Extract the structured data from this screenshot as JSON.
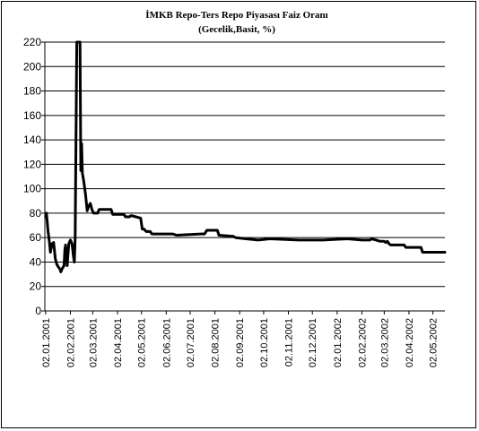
{
  "chart_data": {
    "type": "line",
    "title": "İMKB Repo-Ters Repo Piyasası Faiz Oranı",
    "subtitle": "(Gecelik,Basit, %)",
    "xlabel": "",
    "ylabel": "",
    "ylim": [
      0,
      220
    ],
    "yticks": [
      0,
      20,
      40,
      60,
      80,
      100,
      120,
      140,
      160,
      180,
      200,
      220
    ],
    "xticks": [
      "02.01.2001",
      "02.02.2001",
      "02.03.2001",
      "02.04.2001",
      "02.05.2001",
      "02.06.2001",
      "02.07.2001",
      "02.08.2001",
      "02.09.2001",
      "02.10.2001",
      "02.11.2001",
      "02.12.2001",
      "02.01.2002",
      "02.02.2002",
      "02.03.2002",
      "02.04.2002",
      "02.05.2002"
    ],
    "xlim": [
      "2001-01-01",
      "2002-05-17"
    ],
    "grid": true,
    "legend": "none",
    "line_color": "#000000",
    "series": [
      {
        "name": "",
        "points": [
          [
            "2001-01-02",
            77
          ],
          [
            "2001-01-03",
            80
          ],
          [
            "2001-01-05",
            65
          ],
          [
            "2001-01-07",
            55
          ],
          [
            "2001-01-08",
            48
          ],
          [
            "2001-01-10",
            55
          ],
          [
            "2001-01-12",
            56
          ],
          [
            "2001-01-14",
            43
          ],
          [
            "2001-01-16",
            38
          ],
          [
            "2001-01-18",
            36
          ],
          [
            "2001-01-20",
            34
          ],
          [
            "2001-01-21",
            32
          ],
          [
            "2001-01-23",
            35
          ],
          [
            "2001-01-25",
            37
          ],
          [
            "2001-01-26",
            50
          ],
          [
            "2001-01-27",
            54
          ],
          [
            "2001-01-29",
            37
          ],
          [
            "2001-01-31",
            55
          ],
          [
            "2001-02-02",
            58
          ],
          [
            "2001-02-04",
            55
          ],
          [
            "2001-02-06",
            44
          ],
          [
            "2001-02-07",
            40
          ],
          [
            "2001-02-08",
            60
          ],
          [
            "2001-02-10",
            220
          ],
          [
            "2001-02-14",
            220
          ],
          [
            "2001-02-15",
            115
          ],
          [
            "2001-02-16",
            137
          ],
          [
            "2001-02-17",
            113
          ],
          [
            "2001-02-19",
            105
          ],
          [
            "2001-02-21",
            95
          ],
          [
            "2001-02-23",
            82
          ],
          [
            "2001-02-25",
            86
          ],
          [
            "2001-02-27",
            88
          ],
          [
            "2001-03-01",
            83
          ],
          [
            "2001-03-03",
            80
          ],
          [
            "2001-03-08",
            80
          ],
          [
            "2001-03-10",
            83
          ],
          [
            "2001-03-25",
            83
          ],
          [
            "2001-03-27",
            79
          ],
          [
            "2001-04-10",
            79
          ],
          [
            "2001-04-12",
            77
          ],
          [
            "2001-04-17",
            77
          ],
          [
            "2001-04-19",
            78
          ],
          [
            "2001-04-25",
            77
          ],
          [
            "2001-05-01",
            76
          ],
          [
            "2001-05-03",
            67
          ],
          [
            "2001-05-05",
            67
          ],
          [
            "2001-05-08",
            65
          ],
          [
            "2001-05-13",
            65
          ],
          [
            "2001-05-15",
            63
          ],
          [
            "2001-06-10",
            63
          ],
          [
            "2001-06-15",
            62
          ],
          [
            "2001-07-15",
            63
          ],
          [
            "2001-07-20",
            63
          ],
          [
            "2001-07-23",
            66
          ],
          [
            "2001-08-05",
            66
          ],
          [
            "2001-08-07",
            62
          ],
          [
            "2001-08-25",
            61
          ],
          [
            "2001-08-28",
            60
          ],
          [
            "2001-09-10",
            59
          ],
          [
            "2001-09-25",
            58
          ],
          [
            "2001-10-10",
            59
          ],
          [
            "2001-11-15",
            58
          ],
          [
            "2001-12-15",
            58
          ],
          [
            "2002-01-15",
            59
          ],
          [
            "2002-02-02",
            58
          ],
          [
            "2002-02-12",
            58
          ],
          [
            "2002-02-14",
            59
          ],
          [
            "2002-02-20",
            58
          ],
          [
            "2002-02-25",
            57
          ],
          [
            "2002-03-02",
            57
          ],
          [
            "2002-03-04",
            56
          ],
          [
            "2002-03-06",
            57
          ],
          [
            "2002-03-08",
            55
          ],
          [
            "2002-03-10",
            54
          ],
          [
            "2002-03-27",
            54
          ],
          [
            "2002-03-29",
            52
          ],
          [
            "2002-04-17",
            52
          ],
          [
            "2002-04-19",
            48
          ],
          [
            "2002-05-17",
            48
          ]
        ]
      }
    ]
  }
}
